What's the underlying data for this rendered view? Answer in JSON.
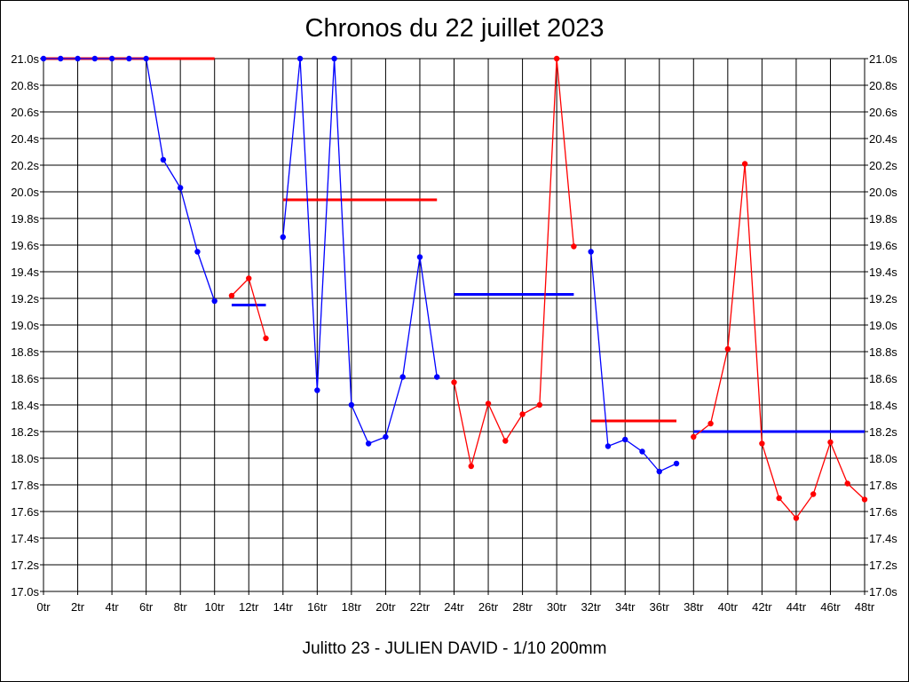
{
  "chart_data": {
    "type": "line",
    "title": "Chronos du 22 juillet 2023",
    "subtitle": "Julitto 23 - JULIEN DAVID - 1/10 200mm",
    "xlim": [
      0,
      48
    ],
    "ylim": [
      17.0,
      21.0
    ],
    "grid": true,
    "x_ticks": [
      {
        "v": 0,
        "label": "0tr"
      },
      {
        "v": 2,
        "label": "2tr"
      },
      {
        "v": 4,
        "label": "4tr"
      },
      {
        "v": 6,
        "label": "6tr"
      },
      {
        "v": 8,
        "label": "8tr"
      },
      {
        "v": 10,
        "label": "10tr"
      },
      {
        "v": 12,
        "label": "12tr"
      },
      {
        "v": 14,
        "label": "14tr"
      },
      {
        "v": 16,
        "label": "16tr"
      },
      {
        "v": 18,
        "label": "18tr"
      },
      {
        "v": 20,
        "label": "20tr"
      },
      {
        "v": 22,
        "label": "22tr"
      },
      {
        "v": 24,
        "label": "24tr"
      },
      {
        "v": 26,
        "label": "26tr"
      },
      {
        "v": 28,
        "label": "28tr"
      },
      {
        "v": 30,
        "label": "30tr"
      },
      {
        "v": 32,
        "label": "32tr"
      },
      {
        "v": 34,
        "label": "34tr"
      },
      {
        "v": 36,
        "label": "36tr"
      },
      {
        "v": 38,
        "label": "38tr"
      },
      {
        "v": 40,
        "label": "40tr"
      },
      {
        "v": 42,
        "label": "42tr"
      },
      {
        "v": 44,
        "label": "44tr"
      },
      {
        "v": 46,
        "label": "46tr"
      },
      {
        "v": 48,
        "label": "48tr"
      }
    ],
    "y_ticks": [
      {
        "v": 17.0,
        "label": "17.0s"
      },
      {
        "v": 17.2,
        "label": "17.2s"
      },
      {
        "v": 17.4,
        "label": "17.4s"
      },
      {
        "v": 17.6,
        "label": "17.6s"
      },
      {
        "v": 17.8,
        "label": "17.8s"
      },
      {
        "v": 18.0,
        "label": "18.0s"
      },
      {
        "v": 18.2,
        "label": "18.2s"
      },
      {
        "v": 18.4,
        "label": "18.4s"
      },
      {
        "v": 18.6,
        "label": "18.6s"
      },
      {
        "v": 18.8,
        "label": "18.8s"
      },
      {
        "v": 19.0,
        "label": "19.0s"
      },
      {
        "v": 19.2,
        "label": "19.2s"
      },
      {
        "v": 19.4,
        "label": "19.4s"
      },
      {
        "v": 19.6,
        "label": "19.6s"
      },
      {
        "v": 19.8,
        "label": "19.8s"
      },
      {
        "v": 20.0,
        "label": "20.0s"
      },
      {
        "v": 20.2,
        "label": "20.2s"
      },
      {
        "v": 20.4,
        "label": "20.4s"
      },
      {
        "v": 20.6,
        "label": "20.6s"
      },
      {
        "v": 20.8,
        "label": "20.8s"
      },
      {
        "v": 21.0,
        "label": "21.0s"
      }
    ],
    "series": [
      {
        "color": "#0000ff",
        "points": [
          [
            0,
            21.0
          ],
          [
            1,
            21.0
          ],
          [
            2,
            21.0
          ],
          [
            3,
            21.0
          ],
          [
            4,
            21.0
          ],
          [
            5,
            21.0
          ],
          [
            6,
            21.0
          ],
          [
            7,
            20.24
          ],
          [
            8,
            20.03
          ],
          [
            9,
            19.55
          ],
          [
            10,
            19.18
          ]
        ]
      },
      {
        "color": "#ff0000",
        "points": [
          [
            11,
            19.22
          ],
          [
            12,
            19.35
          ],
          [
            13,
            18.9
          ]
        ]
      },
      {
        "color": "#0000ff",
        "points": [
          [
            14,
            19.66
          ],
          [
            15,
            21.0
          ],
          [
            16,
            18.51
          ],
          [
            17,
            21.0
          ],
          [
            18,
            18.4
          ],
          [
            19,
            18.11
          ],
          [
            20,
            18.16
          ],
          [
            21,
            18.61
          ],
          [
            22,
            19.51
          ],
          [
            23,
            18.61
          ]
        ]
      },
      {
        "color": "#ff0000",
        "points": [
          [
            24,
            18.57
          ],
          [
            25,
            17.94
          ],
          [
            26,
            18.41
          ],
          [
            27,
            18.13
          ],
          [
            28,
            18.33
          ],
          [
            29,
            18.4
          ],
          [
            30,
            21.0
          ],
          [
            31,
            19.59
          ]
        ]
      },
      {
        "color": "#0000ff",
        "points": [
          [
            32,
            19.55
          ],
          [
            33,
            18.09
          ],
          [
            34,
            18.14
          ],
          [
            35,
            18.05
          ],
          [
            36,
            17.9
          ],
          [
            37,
            17.96
          ]
        ]
      },
      {
        "color": "#ff0000",
        "points": [
          [
            38,
            18.16
          ],
          [
            39,
            18.26
          ],
          [
            40,
            18.82
          ],
          [
            41,
            20.21
          ],
          [
            42,
            18.11
          ],
          [
            43,
            17.7
          ],
          [
            44,
            17.55
          ],
          [
            45,
            17.73
          ],
          [
            46,
            18.12
          ],
          [
            47,
            17.81
          ],
          [
            48,
            17.69
          ]
        ]
      }
    ],
    "averages": [
      {
        "color": "#ff0000",
        "x0": 0,
        "x1": 10,
        "y": 21.0
      },
      {
        "color": "#0000ff",
        "x0": 11,
        "x1": 13,
        "y": 19.15
      },
      {
        "color": "#ff0000",
        "x0": 14,
        "x1": 23,
        "y": 19.94
      },
      {
        "color": "#0000ff",
        "x0": 24,
        "x1": 31,
        "y": 19.23
      },
      {
        "color": "#ff0000",
        "x0": 32,
        "x1": 37,
        "y": 18.28
      },
      {
        "color": "#0000ff",
        "x0": 38,
        "x1": 48,
        "y": 18.2
      }
    ]
  }
}
